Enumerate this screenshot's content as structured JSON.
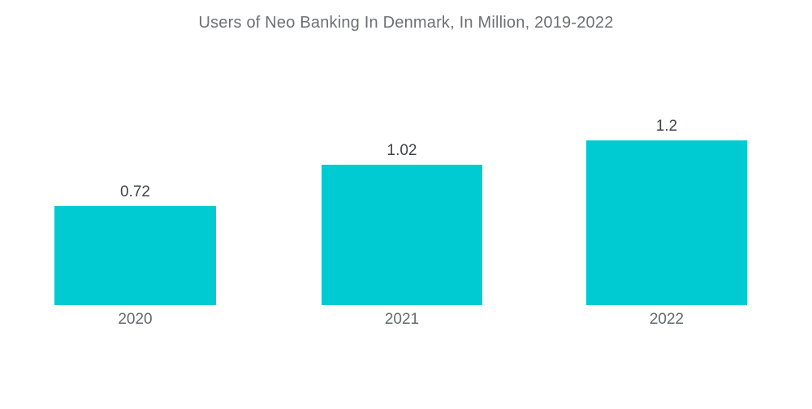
{
  "chart_data": {
    "type": "bar",
    "title": "Users of Neo Banking In Denmark, In Million, 2019-2022",
    "categories": [
      "2020",
      "2021",
      "2022"
    ],
    "values": [
      0.72,
      1.02,
      1.2
    ],
    "value_labels": [
      "0.72",
      "1.02",
      "1.2"
    ],
    "xlabel": "",
    "ylabel": "",
    "ylim": [
      0,
      1.2
    ],
    "grid": false,
    "legend": "none",
    "axes_visible": false,
    "bar_color": "#00CBD2",
    "title_color": "#6D7074",
    "value_label_color": "#3F4347",
    "category_label_color": "#66696D",
    "background_color": "#FFFFFF"
  }
}
